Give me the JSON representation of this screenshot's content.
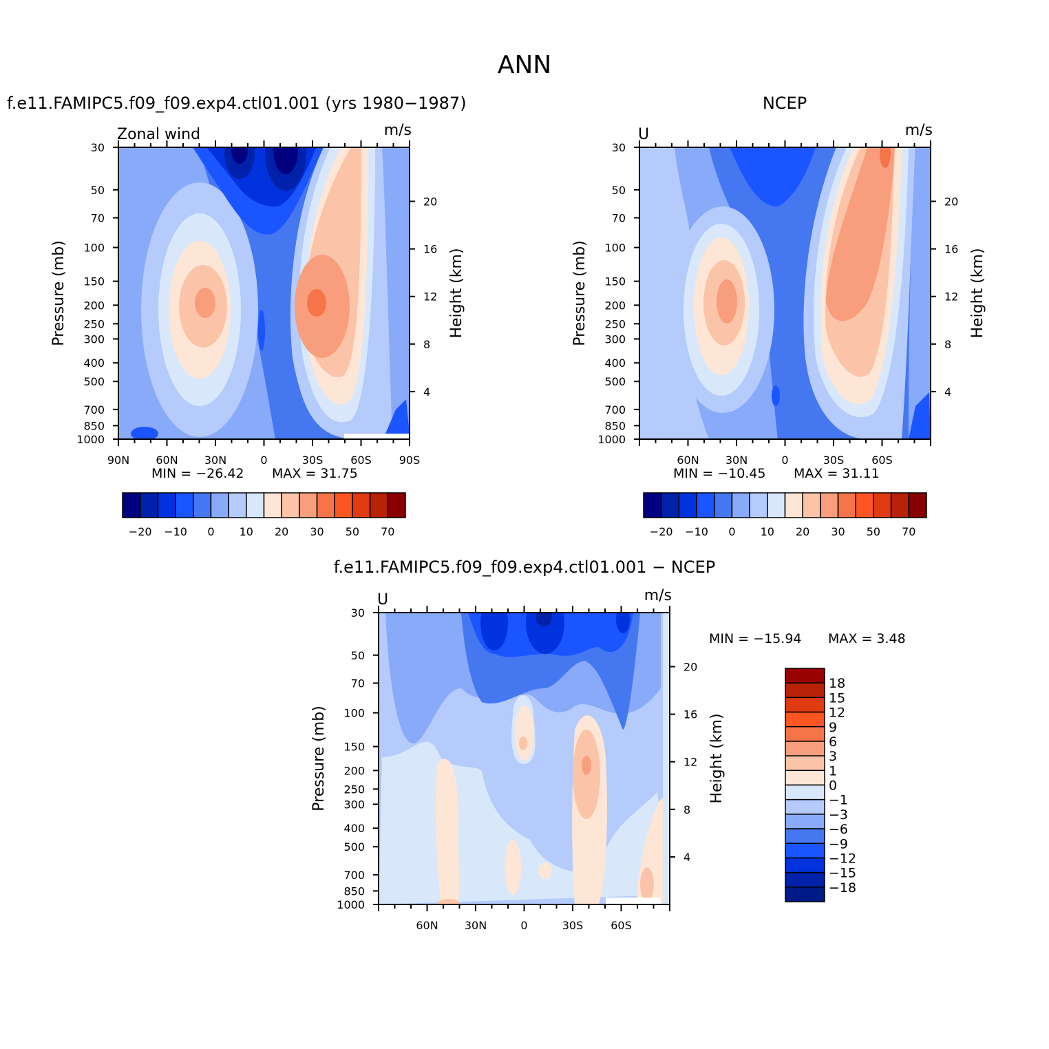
{
  "figure": {
    "title": "ANN",
    "colors": {
      "main_scale": [
        "#000080",
        "#0022aa",
        "#0033dd",
        "#1a55ff",
        "#4477f0",
        "#88aaf8",
        "#b4cbfb",
        "#d8e8fa",
        "#fde6d6",
        "#fbc4a8",
        "#f89e7c",
        "#f57548",
        "#ff5522",
        "#e03a10",
        "#b82208",
        "#880000"
      ],
      "diff_scale": [
        "#001a88",
        "#0022aa",
        "#0033dd",
        "#1a55ff",
        "#4477f0",
        "#88aaf8",
        "#b4cbfb",
        "#d8e8fa",
        "#fde6d6",
        "#fbc4a8",
        "#f89e7c",
        "#f57548",
        "#ff5522",
        "#e03a10",
        "#b82208",
        "#990000"
      ]
    }
  },
  "chart_data": [
    {
      "type": "heatmap",
      "title": "f.e11.FAMIPC5.f09_f09.exp4.ctl01.001 (yrs 1980−1987)",
      "variable_label": "Zonal wind",
      "units": "m/s",
      "xlabel": "",
      "ylabel": "Pressure (mb)",
      "y2label": "Height (km)",
      "x_ticks": [
        "90N",
        "60N",
        "30N",
        "0",
        "30S",
        "60S",
        "90S"
      ],
      "y_ticks": [
        "30",
        "50",
        "70",
        "100",
        "150",
        "200",
        "250",
        "300",
        "400",
        "500",
        "700",
        "850",
        "1000"
      ],
      "y2_ticks": [
        "20",
        "16",
        "12",
        "8",
        "4"
      ],
      "min_label": "MIN = −26.42",
      "max_label": "MAX = 31.75",
      "min": -26.42,
      "max": 31.75,
      "colorbar_ticks": [
        "−20",
        "−10",
        "0",
        "10",
        "20",
        "30",
        "50",
        "70"
      ],
      "levels": [
        -25,
        -20,
        -15,
        -10,
        -5,
        0,
        5,
        10,
        15,
        20,
        25,
        30,
        40,
        50,
        60,
        70
      ]
    },
    {
      "type": "heatmap",
      "title": "NCEP",
      "variable_label": "U",
      "units": "m/s",
      "xlabel": "",
      "ylabel": "Pressure (mb)",
      "y2label": "Height (km)",
      "x_ticks": [
        "60N",
        "30N",
        "0",
        "30S",
        "60S"
      ],
      "y_ticks": [
        "30",
        "50",
        "70",
        "100",
        "150",
        "200",
        "250",
        "300",
        "400",
        "500",
        "700",
        "850",
        "1000"
      ],
      "y2_ticks": [
        "20",
        "16",
        "12",
        "8",
        "4"
      ],
      "min_label": "MIN = −10.45",
      "max_label": "MAX = 31.11",
      "min": -10.45,
      "max": 31.11,
      "colorbar_ticks": [
        "−20",
        "−10",
        "0",
        "10",
        "20",
        "30",
        "50",
        "70"
      ],
      "levels": [
        -25,
        -20,
        -15,
        -10,
        -5,
        0,
        5,
        10,
        15,
        20,
        25,
        30,
        40,
        50,
        60,
        70
      ]
    },
    {
      "type": "heatmap",
      "title": "f.e11.FAMIPC5.f09_f09.exp4.ctl01.001 − NCEP",
      "variable_label": "U",
      "units": "m/s",
      "xlabel": "",
      "ylabel": "Pressure (mb)",
      "y2label": "Height (km)",
      "x_ticks": [
        "60N",
        "30N",
        "0",
        "30S",
        "60S"
      ],
      "y_ticks": [
        "30",
        "50",
        "70",
        "100",
        "150",
        "200",
        "250",
        "300",
        "400",
        "500",
        "700",
        "850",
        "1000"
      ],
      "y2_ticks": [
        "20",
        "16",
        "12",
        "8",
        "4"
      ],
      "min_label": "MIN = −15.94",
      "max_label": "MAX = 3.48",
      "min": -15.94,
      "max": 3.48,
      "colorbar_ticks": [
        "18",
        "15",
        "12",
        "9",
        "6",
        "3",
        "1",
        "0",
        "−1",
        "−3",
        "−6",
        "−9",
        "−12",
        "−15",
        "−18"
      ],
      "levels": [
        -18,
        -15,
        -12,
        -9,
        -6,
        -3,
        -1,
        0,
        1,
        3,
        6,
        9,
        12,
        15,
        18
      ]
    }
  ]
}
